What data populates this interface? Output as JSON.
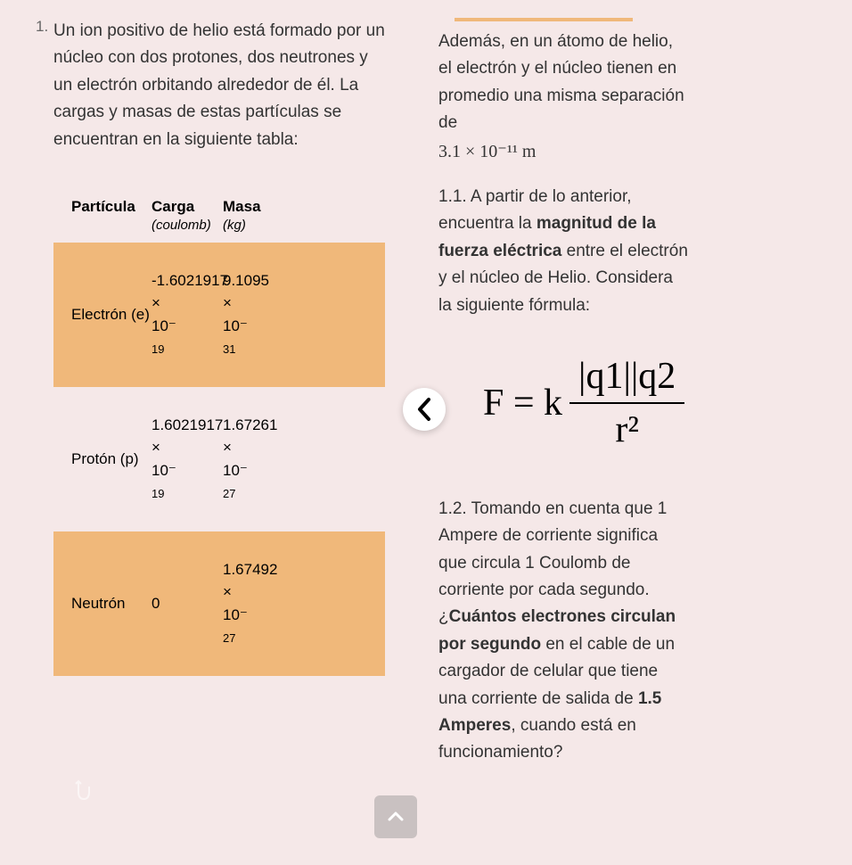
{
  "colors": {
    "page_bg": "#f5e8e8",
    "row_highlight": "#f0b87a",
    "text": "#333333",
    "divider": "#e8e8e8",
    "chevron_bg": "#ffffff",
    "scroll_btn_bg": "rgba(120,120,120,0.35)"
  },
  "left": {
    "list_number": "1.",
    "intro": "Un ion positivo de helio está formado por un núcleo con dos protones, dos neutrones y un electrón orbitando alrededor de él. La cargas y masas de estas partículas se encuentran en la siguiente tabla:",
    "table": {
      "headers": {
        "particle": "Partícula",
        "charge": "Carga",
        "charge_unit": "(coulomb)",
        "mass": "Masa",
        "mass_unit": "(kg)"
      },
      "rows": [
        {
          "highlighted": true,
          "particle": "Electrón (e)",
          "charge": "-1.6021917",
          "charge_mult": "×",
          "charge_base": "10⁻",
          "charge_exp": "19",
          "mass": "9.1095",
          "mass_mult": "×",
          "mass_base": "10⁻",
          "mass_exp": "31"
        },
        {
          "highlighted": false,
          "particle": "Protón (p)",
          "charge": "1.6021917",
          "charge_mult": "×",
          "charge_base": "10⁻",
          "charge_exp": "19",
          "mass": "1.67261",
          "mass_mult": "×",
          "mass_base": "10⁻",
          "mass_exp": "27"
        },
        {
          "highlighted": true,
          "particle": "Neutrón",
          "charge": "0",
          "charge_mult": "",
          "charge_base": "",
          "charge_exp": "",
          "mass": "1.67492",
          "mass_mult": "×",
          "mass_base": "10⁻",
          "mass_exp": "27"
        }
      ]
    }
  },
  "right": {
    "para1_a": "Además, en un átomo de helio, el electrón y el núcleo tienen en promedio una misma separación de",
    "para1_math": "3.1 × 10⁻¹¹ m",
    "q11_a": "1.1. A partir de lo anterior, encuentra la ",
    "q11_bold": "magnitud de la fuerza eléctrica",
    "q11_b": " entre el electrón y el núcleo de Helio. Considera la siguiente fórmula:",
    "formula": {
      "lhs": "F = k",
      "numerator": "|q1||q2",
      "denominator": "r²"
    },
    "q12_a": "1.2. Tomando en cuenta que 1 Ampere de corriente significa que circula 1 Coulomb de corriente por cada segundo. ¿",
    "q12_bold1": "Cuántos electrones circulan por segundo",
    "q12_b": " en el cable de un cargador de celular que tiene una corriente de salida de ",
    "q12_bold2": "1.5 Amperes",
    "q12_c": ", cuando está en funcionamiento?"
  },
  "icons": {
    "chevron": "chevron-left-icon",
    "scroll_top": "chevron-up-icon",
    "scroll_hint": "scroll-hint-icon"
  }
}
